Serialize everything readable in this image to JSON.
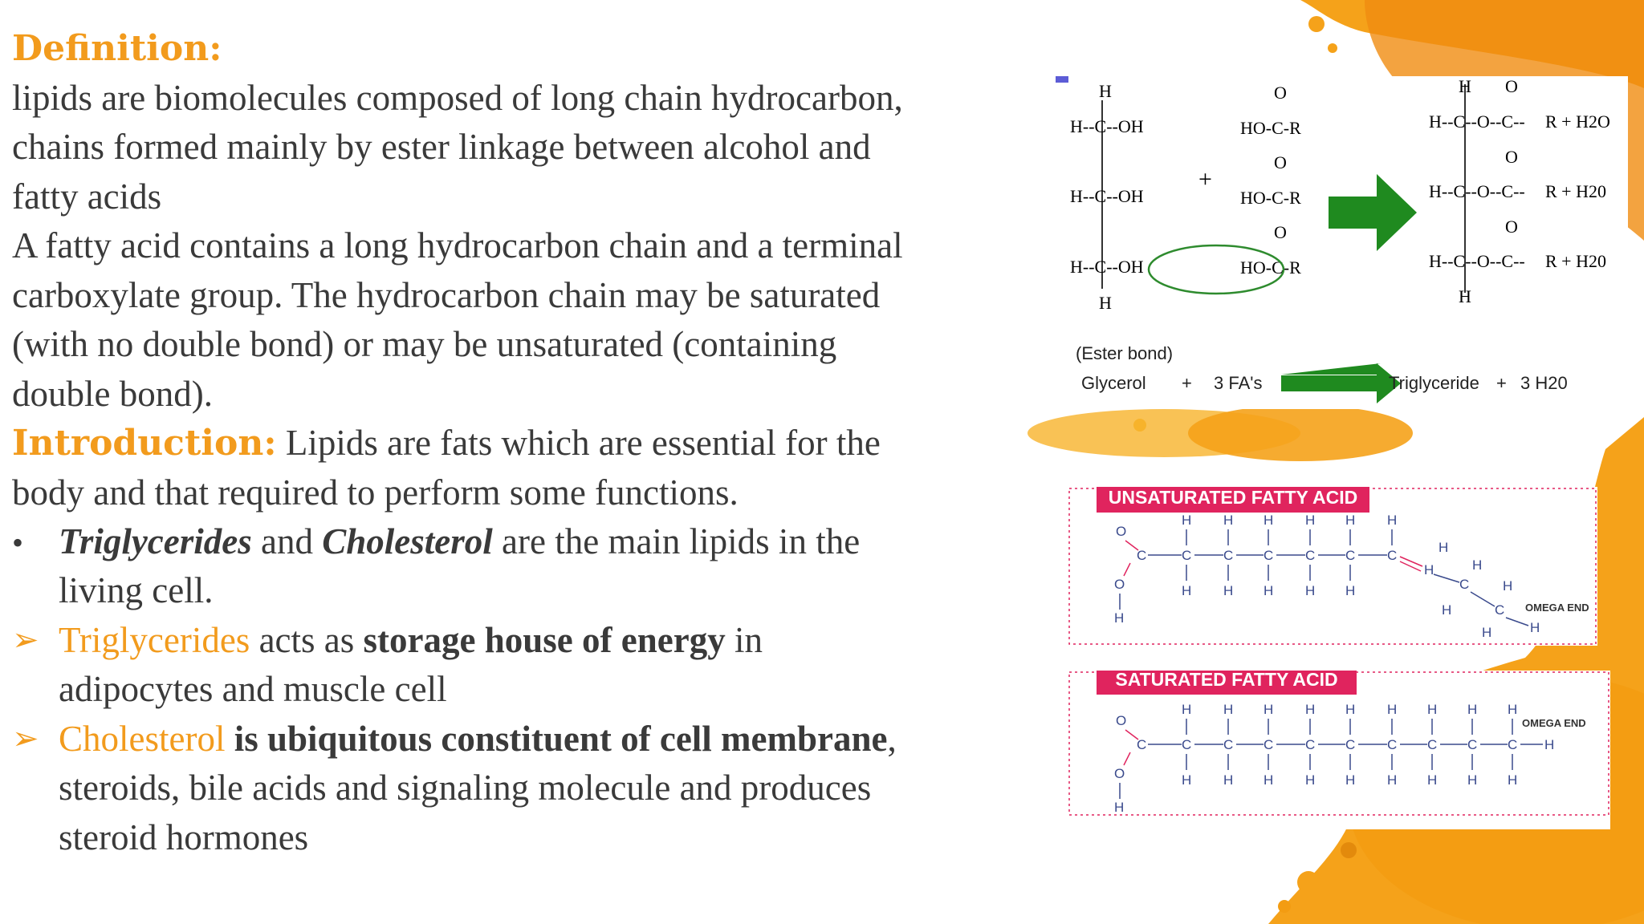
{
  "definition": {
    "heading": "Definition:",
    "lines": [
      "lipids are biomolecules composed of long chain hydrocarbon,",
      "chains formed mainly by ester linkage between alcohol and",
      "fatty acids",
      "A fatty acid contains a long hydrocarbon chain and a terminal",
      "carboxylate group. The hydrocarbon chain may be saturated",
      "(with no double bond) or may be unsaturated (containing",
      "double bond)."
    ]
  },
  "introduction": {
    "heading": "Introduction:",
    "text": " Lipids are fats which are essential for the",
    "line2": "body and that required to perform some functions."
  },
  "bullets": {
    "b1": {
      "marker": "•",
      "t1": "Triglycerides",
      "t2": " and ",
      "t3": "Cholesterol",
      "t4": " are the main lipids in the",
      "cont": "living cell."
    },
    "b2": {
      "marker": "➢",
      "t1": "Triglycerides",
      "t2": " acts as ",
      "t3": "storage house of energy",
      "t4": " in",
      "cont": "adipocytes and muscle cell"
    },
    "b3": {
      "marker": "➢",
      "t1": "Cholesterol",
      "t2": " ",
      "t3": "is ubiquitous constituent of cell membrane",
      "t4": ",",
      "cont1": "steroids, bile acids and signaling molecule and produces",
      "cont2": "steroid hormones"
    }
  },
  "reaction": {
    "glycerol": {
      "top_h": "H",
      "rows": [
        "H--C--OH",
        "H--C--OH",
        "H--C--OH"
      ],
      "bottom_h": "H"
    },
    "plus": "+",
    "acids": {
      "o": "O",
      "group": "HO-C-R"
    },
    "product": {
      "top_h": "H",
      "o": "O",
      "rows": [
        "H--C--O--C--",
        "H--C--O--C--",
        "H--C--O--C--"
      ],
      "right": [
        "R + H2O",
        "R + H20",
        "R + H20"
      ],
      "bottom_h": "H"
    },
    "ester_label": "(Ester bond)",
    "summary": {
      "glycerol": "Glycerol",
      "plus1": "+",
      "fa": "3 FA's",
      "triglyceride": "Triglyceride",
      "plus2": "+",
      "water": "3 H20"
    },
    "arrow_color": "#1f8a1f"
  },
  "unsaturated": {
    "title": "UNSATURATED FATTY ACID",
    "h": "H",
    "c": "C",
    "o": "O",
    "omega": "OMEGA END",
    "accent": "#e0245e"
  },
  "saturated": {
    "title": "SATURATED FATTY ACID",
    "h": "H",
    "c": "C",
    "o": "O",
    "omega": "OMEGA END",
    "accent": "#e0245e"
  },
  "colors": {
    "heading": "#f29b1d",
    "text": "#3a3a3a",
    "background_splash": "#f7a81b"
  }
}
